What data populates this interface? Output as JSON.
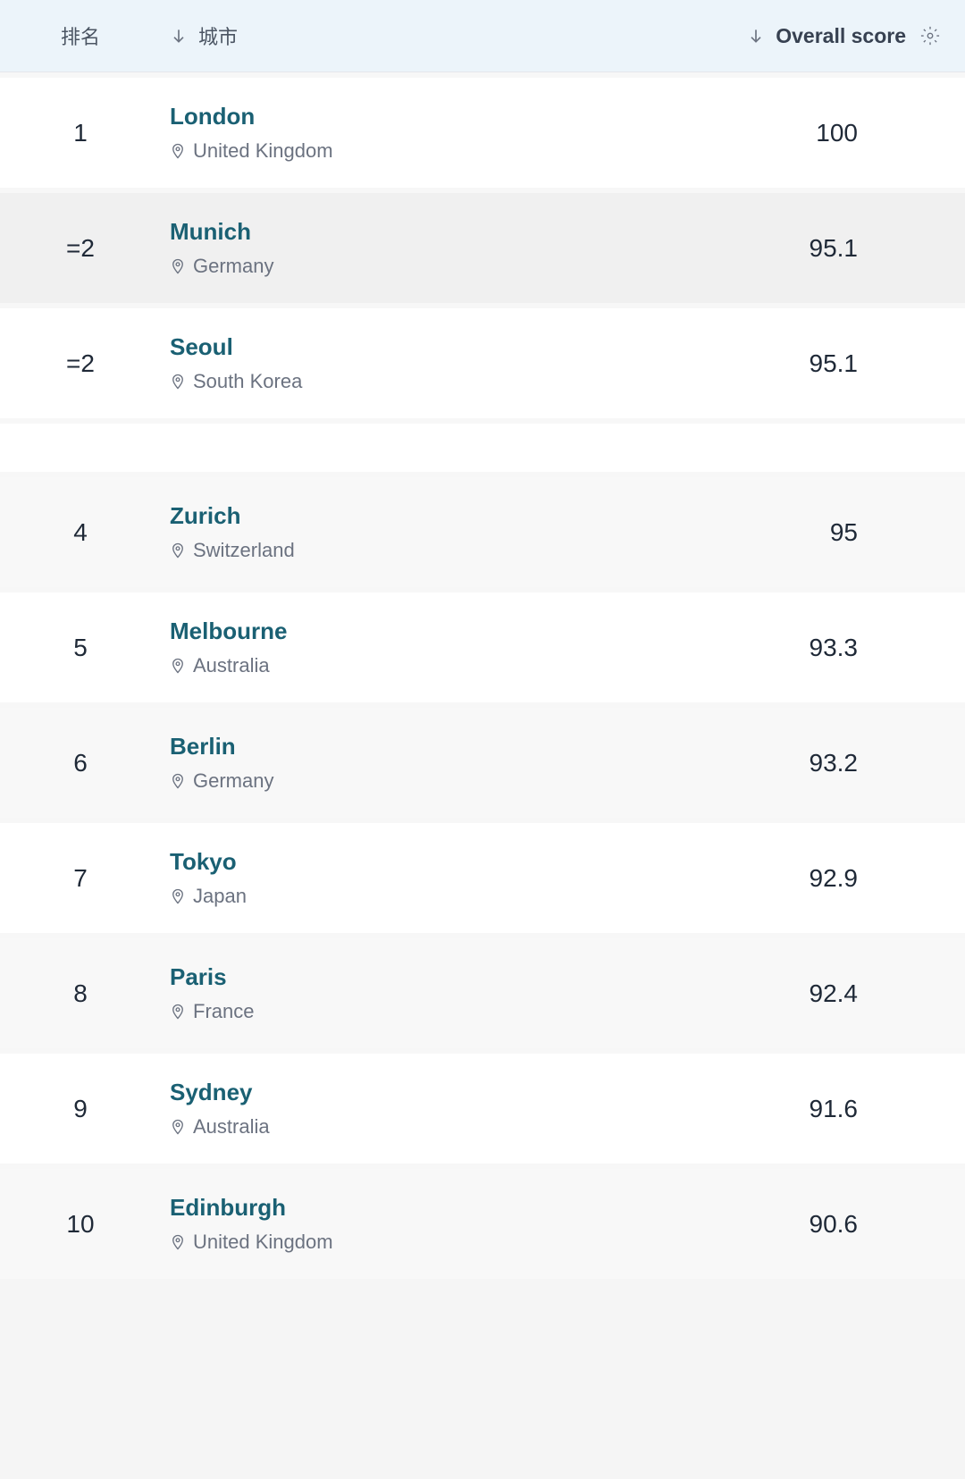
{
  "header": {
    "rank_label": "排名",
    "city_label": "城市",
    "score_label": "Overall score"
  },
  "colors": {
    "header_bg": "#ecf4fa",
    "city_link": "#1a6073",
    "text_primary": "#1f2937",
    "text_secondary": "#6b7280",
    "row_white": "#ffffff",
    "row_gray": "#f8f8f8",
    "row_gray2": "#f0f0f0",
    "divider": "#f7f7f7"
  },
  "rows": [
    {
      "rank": "1",
      "city": "London",
      "country": "United Kingdom",
      "score": "100",
      "bg": "white"
    },
    {
      "rank": "=2",
      "city": "Munich",
      "country": "Germany",
      "score": "95.1",
      "bg": "gray2"
    },
    {
      "rank": "=2",
      "city": "Seoul",
      "country": "South Korea",
      "score": "95.1",
      "bg": "white"
    },
    {
      "rank": "4",
      "city": "Zurich",
      "country": "Switzerland",
      "score": "95",
      "bg": "gray"
    },
    {
      "rank": "5",
      "city": "Melbourne",
      "country": "Australia",
      "score": "93.3",
      "bg": "white"
    },
    {
      "rank": "6",
      "city": "Berlin",
      "country": "Germany",
      "score": "93.2",
      "bg": "gray"
    },
    {
      "rank": "7",
      "city": "Tokyo",
      "country": "Japan",
      "score": "92.9",
      "bg": "white"
    },
    {
      "rank": "8",
      "city": "Paris",
      "country": "France",
      "score": "92.4",
      "bg": "gray"
    },
    {
      "rank": "9",
      "city": "Sydney",
      "country": "Australia",
      "score": "91.6",
      "bg": "white"
    },
    {
      "rank": "10",
      "city": "Edinburgh",
      "country": "United Kingdom",
      "score": "90.6",
      "bg": "gray"
    }
  ],
  "spacer_after_index": 2
}
